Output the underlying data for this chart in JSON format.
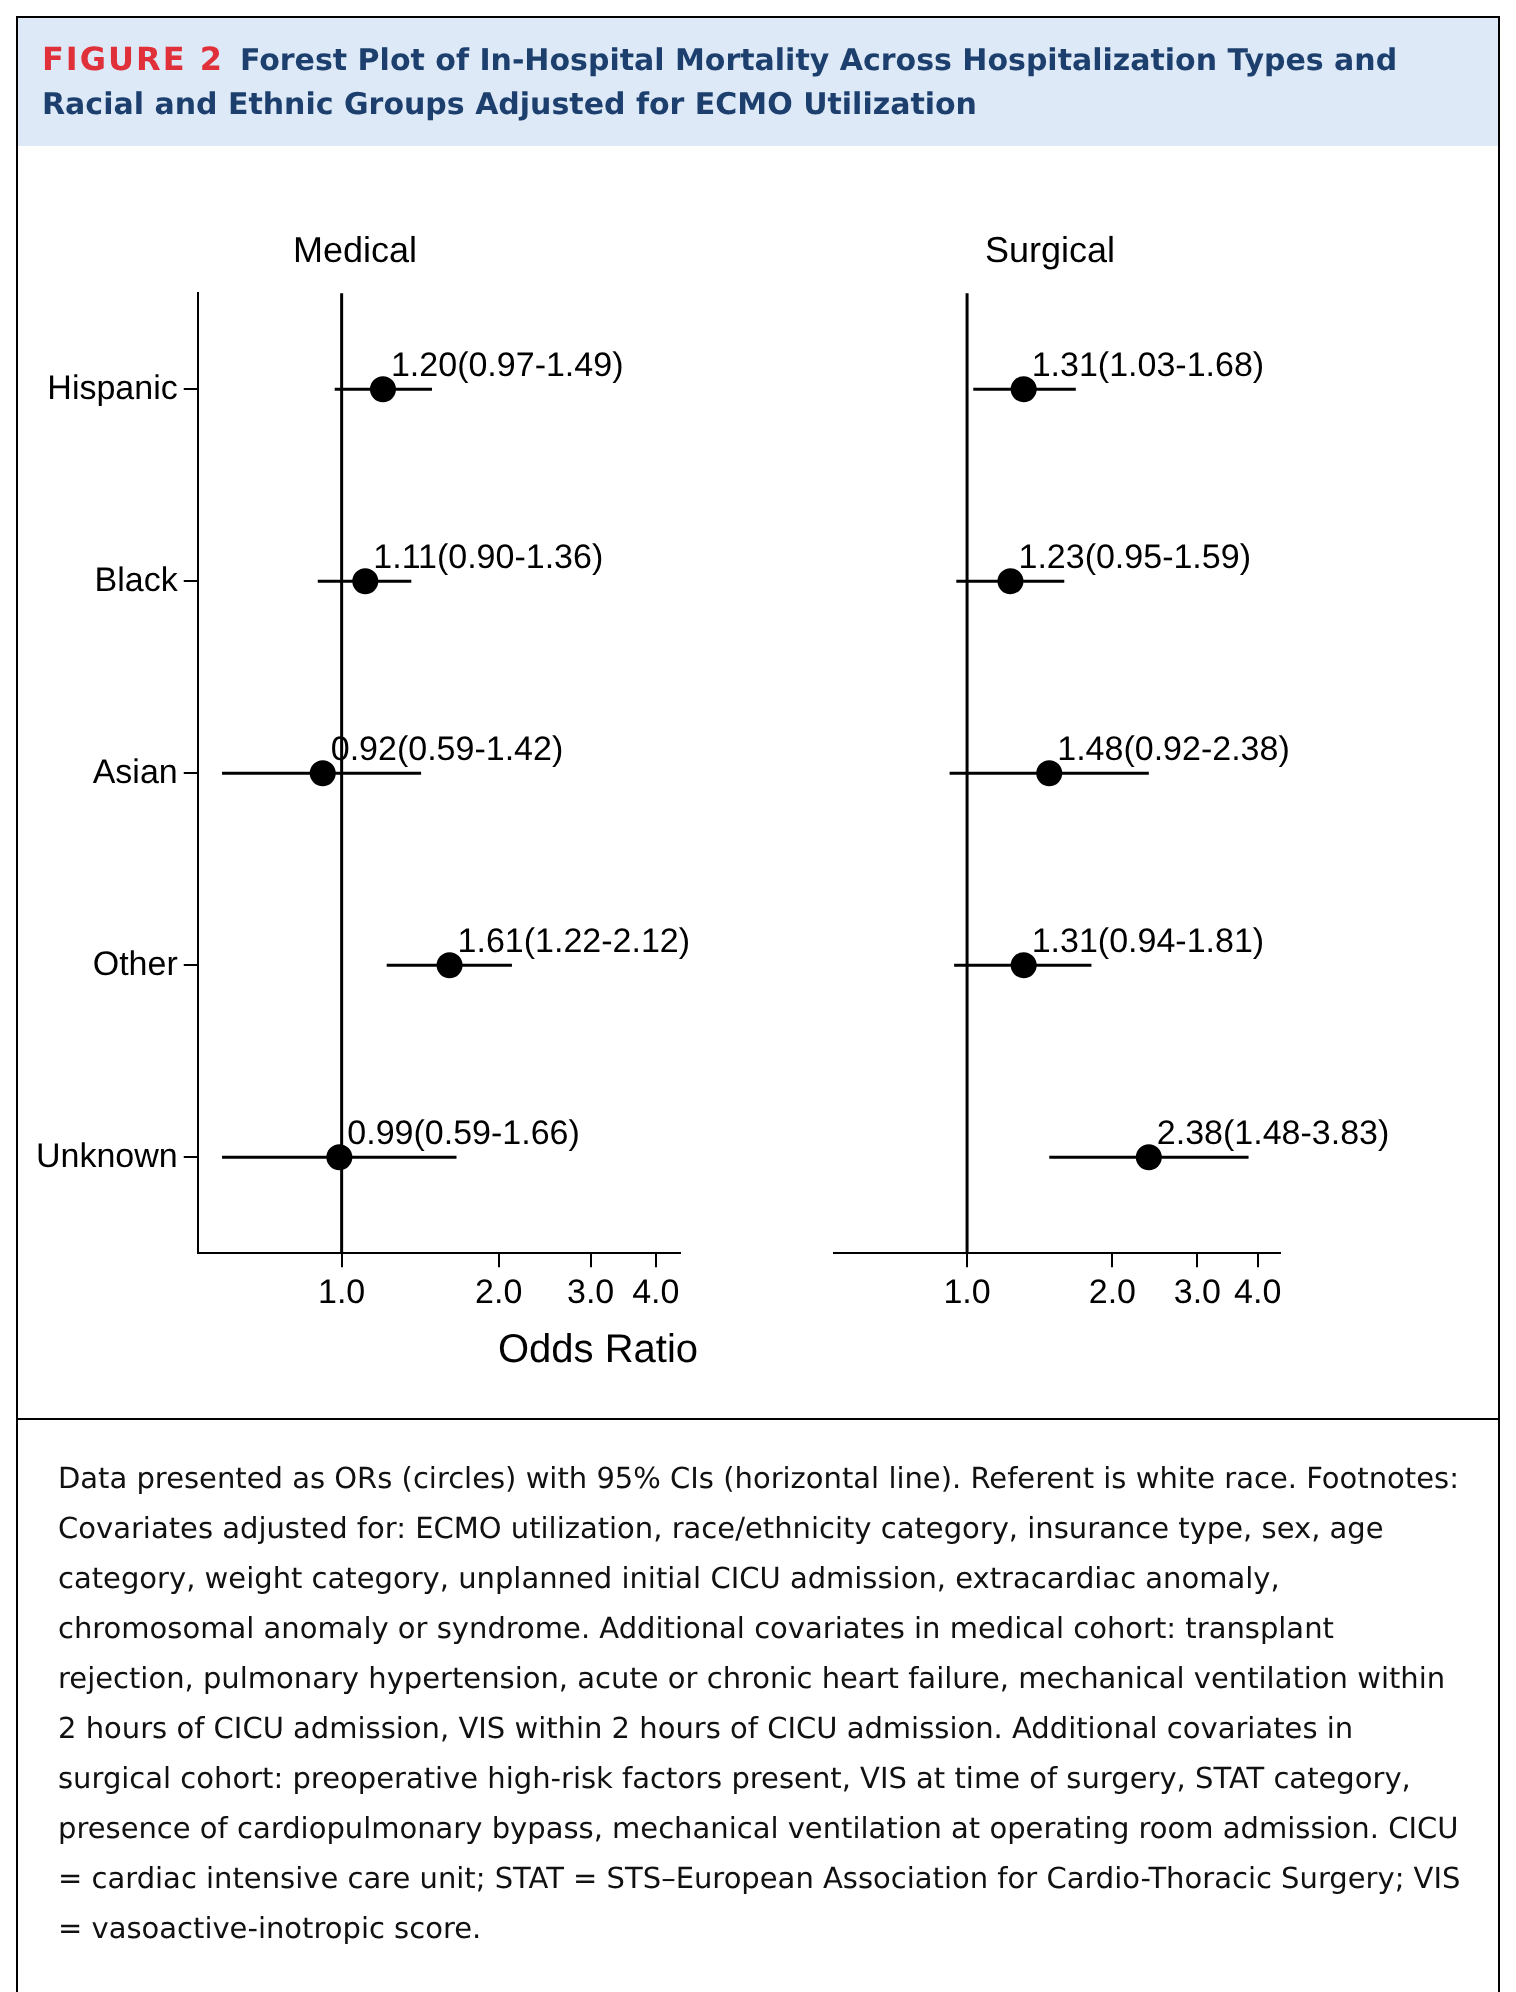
{
  "chart_data": [
    {
      "type": "scatter",
      "orientation": "horizontal",
      "title": "Medical",
      "xlabel": "Odds Ratio",
      "annotations": [
        "FIGURE 2",
        "Forest Plot of In-Hospital Mortality Across Hospitalization Types and Racial and Ethnic Groups Adjusted for ECMO Utilization",
        "Data presented as ORs (circles) with 95% CIs (horizontal line). Referent is white race. Footnotes: Covariates adjusted for: ECMO utilization, race/ethnicity category, insurance type, sex, age category, weight category, unplanned initial CICU admission, extracardiac anomaly, chromosomal anomaly or syndrome. Additional covariates in medical cohort: transplant rejection, pulmonary hypertension, acute or chronic heart failure, mechanical ventilation within 2 hours of CICU admission, VIS within 2 hours of CICU admission. Additional covariates in surgical cohort: preoperative high-risk factors present, VIS at time of surgery, STAT category, presence of cardiopulmonary bypass, mechanical ventilation at operating room admission. CICU = cardiac intensive care unit; STAT = STS–European Association for Cardio-Thoracic Surgery; VIS = vasoactive-inotropic score."
      ],
      "categories": [
        "Hispanic",
        "Black",
        "Asian",
        "Other",
        "Unknown"
      ],
      "series": [
        {
          "color": "#000000",
          "values": [
            1.2,
            1.11,
            0.92,
            1.61,
            0.99
          ],
          "errors": [
            [
              0.97,
              1.49
            ],
            [
              0.9,
              1.36
            ],
            [
              0.59,
              1.42
            ],
            [
              1.22,
              2.12
            ],
            [
              0.59,
              1.66
            ]
          ],
          "value_labels": [
            "1.20(0.97-1.49)",
            "1.11(0.90-1.36)",
            "0.92(0.59-1.42)",
            "1.61(1.22-2.12)",
            "0.99(0.59-1.66)"
          ]
        }
      ],
      "log": "x",
      "xlim": [
        0.53,
        4.45
      ],
      "xticks": [
        {
          "value": 1,
          "label": "1.0"
        },
        {
          "value": 2,
          "label": "2.0"
        },
        {
          "value": 3,
          "label": "3.0"
        },
        {
          "value": 4,
          "label": "4.0"
        }
      ],
      "ref_lines": [
        {
          "axis": "x",
          "value": 1,
          "color": "#000000"
        }
      ],
      "marker": "circle",
      "grid": false,
      "legend": false
    },
    {
      "type": "scatter",
      "orientation": "horizontal",
      "title": "Surgical",
      "categories": [
        null,
        null,
        null,
        null,
        null
      ],
      "series": [
        {
          "color": "#000000",
          "values": [
            1.31,
            1.23,
            1.48,
            1.31,
            2.38
          ],
          "errors": [
            [
              1.03,
              1.68
            ],
            [
              0.95,
              1.59
            ],
            [
              0.92,
              2.38
            ],
            [
              0.94,
              1.81
            ],
            [
              1.48,
              3.83
            ]
          ],
          "value_labels": [
            "1.31(1.03-1.68)",
            "1.23(0.95-1.59)",
            "1.48(0.92-2.38)",
            "1.31(0.94-1.81)",
            "2.38(1.48-3.83)"
          ]
        }
      ],
      "log": "x",
      "xlim": [
        0.53,
        4.45
      ],
      "xticks": [
        {
          "value": 1,
          "label": "1.0"
        },
        {
          "value": 2,
          "label": "2.0"
        },
        {
          "value": 3,
          "label": "3.0"
        },
        {
          "value": 4,
          "label": "4.0"
        }
      ],
      "ref_lines": [
        {
          "axis": "x",
          "value": 1,
          "color": "#000000"
        }
      ],
      "marker": "circle",
      "grid": false,
      "legend": false,
      "tick_labels": "x"
    }
  ]
}
